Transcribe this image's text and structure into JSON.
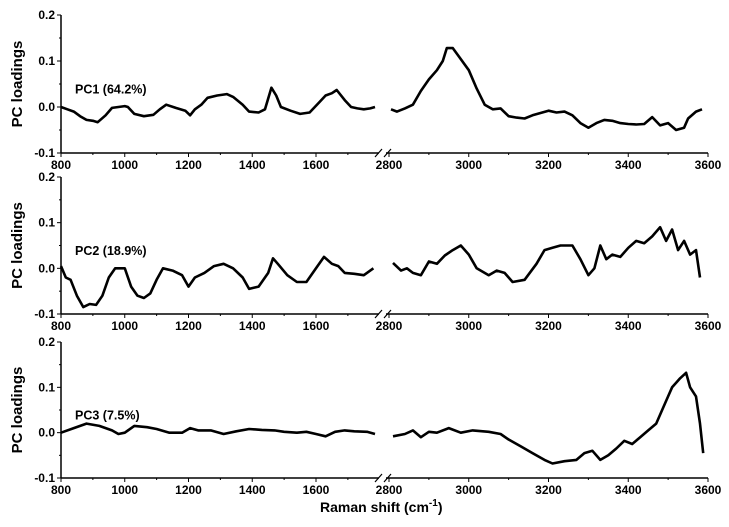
{
  "chart_data": {
    "type": "line",
    "xlabel": "Raman shift (cm",
    "xlabel_sup": "-1",
    "xlabel_close": ")",
    "ylabel": "PC loadings",
    "x_ranges": [
      [
        800,
        1790
      ],
      [
        2800,
        3600
      ]
    ],
    "x_ticks_left": [
      "800",
      "1000",
      "1200",
      "1400",
      "1600"
    ],
    "x_ticks_right": [
      "2800",
      "3000",
      "3200",
      "3400",
      "3600"
    ],
    "ylim": [
      -0.1,
      0.2
    ],
    "y_ticks": [
      "-0.1",
      "0.0",
      "0.1",
      "0.2"
    ],
    "grid": false,
    "panels": [
      {
        "label": "PC1 (64.2%)",
        "left": [
          [
            800,
            0
          ],
          [
            820,
            -0.005
          ],
          [
            840,
            -0.01
          ],
          [
            860,
            -0.02
          ],
          [
            880,
            -0.028
          ],
          [
            900,
            -0.03
          ],
          [
            915,
            -0.033
          ],
          [
            940,
            -0.018
          ],
          [
            960,
            -0.002
          ],
          [
            980,
            0
          ],
          [
            1000,
            0.002
          ],
          [
            1010,
            0
          ],
          [
            1030,
            -0.015
          ],
          [
            1060,
            -0.02
          ],
          [
            1090,
            -0.017
          ],
          [
            1110,
            -0.005
          ],
          [
            1130,
            0.005
          ],
          [
            1160,
            -0.002
          ],
          [
            1190,
            -0.008
          ],
          [
            1205,
            -0.018
          ],
          [
            1220,
            -0.005
          ],
          [
            1240,
            0.005
          ],
          [
            1260,
            0.02
          ],
          [
            1290,
            0.025
          ],
          [
            1320,
            0.028
          ],
          [
            1340,
            0.022
          ],
          [
            1370,
            0.005
          ],
          [
            1390,
            -0.01
          ],
          [
            1420,
            -0.012
          ],
          [
            1440,
            -0.005
          ],
          [
            1460,
            0.042
          ],
          [
            1475,
            0.025
          ],
          [
            1490,
            0
          ],
          [
            1520,
            -0.008
          ],
          [
            1550,
            -0.015
          ],
          [
            1580,
            -0.012
          ],
          [
            1610,
            0.01
          ],
          [
            1630,
            0.025
          ],
          [
            1650,
            0.03
          ],
          [
            1665,
            0.037
          ],
          [
            1690,
            0.015
          ],
          [
            1710,
            0
          ],
          [
            1730,
            -0.003
          ],
          [
            1750,
            -0.005
          ],
          [
            1770,
            -0.003
          ],
          [
            1785,
            0
          ]
        ],
        "right": [
          [
            2805,
            -0.005
          ],
          [
            2820,
            -0.01
          ],
          [
            2840,
            -0.003
          ],
          [
            2860,
            0.005
          ],
          [
            2880,
            0.035
          ],
          [
            2900,
            0.06
          ],
          [
            2920,
            0.08
          ],
          [
            2935,
            0.1
          ],
          [
            2945,
            0.128
          ],
          [
            2960,
            0.128
          ],
          [
            2975,
            0.11
          ],
          [
            3000,
            0.08
          ],
          [
            3020,
            0.04
          ],
          [
            3040,
            0.005
          ],
          [
            3060,
            -0.005
          ],
          [
            3080,
            -0.003
          ],
          [
            3100,
            -0.02
          ],
          [
            3120,
            -0.023
          ],
          [
            3140,
            -0.025
          ],
          [
            3160,
            -0.018
          ],
          [
            3180,
            -0.013
          ],
          [
            3200,
            -0.008
          ],
          [
            3220,
            -0.012
          ],
          [
            3240,
            -0.01
          ],
          [
            3260,
            -0.018
          ],
          [
            3280,
            -0.035
          ],
          [
            3300,
            -0.045
          ],
          [
            3320,
            -0.035
          ],
          [
            3340,
            -0.028
          ],
          [
            3360,
            -0.03
          ],
          [
            3380,
            -0.035
          ],
          [
            3400,
            -0.037
          ],
          [
            3420,
            -0.038
          ],
          [
            3440,
            -0.037
          ],
          [
            3460,
            -0.022
          ],
          [
            3480,
            -0.04
          ],
          [
            3500,
            -0.035
          ],
          [
            3520,
            -0.05
          ],
          [
            3540,
            -0.045
          ],
          [
            3550,
            -0.025
          ],
          [
            3570,
            -0.01
          ],
          [
            3585,
            -0.005
          ]
        ]
      },
      {
        "label": "PC2 (18.9%)",
        "left": [
          [
            800,
            0.005
          ],
          [
            815,
            -0.02
          ],
          [
            830,
            -0.025
          ],
          [
            850,
            -0.06
          ],
          [
            870,
            -0.085
          ],
          [
            890,
            -0.078
          ],
          [
            910,
            -0.08
          ],
          [
            930,
            -0.06
          ],
          [
            950,
            -0.02
          ],
          [
            970,
            0
          ],
          [
            1000,
            0
          ],
          [
            1020,
            -0.04
          ],
          [
            1040,
            -0.06
          ],
          [
            1060,
            -0.065
          ],
          [
            1080,
            -0.055
          ],
          [
            1100,
            -0.025
          ],
          [
            1120,
            0
          ],
          [
            1150,
            -0.005
          ],
          [
            1180,
            -0.015
          ],
          [
            1200,
            -0.04
          ],
          [
            1220,
            -0.02
          ],
          [
            1250,
            -0.01
          ],
          [
            1280,
            0.005
          ],
          [
            1310,
            0.01
          ],
          [
            1340,
            0
          ],
          [
            1370,
            -0.02
          ],
          [
            1390,
            -0.045
          ],
          [
            1420,
            -0.04
          ],
          [
            1450,
            -0.01
          ],
          [
            1465,
            0.022
          ],
          [
            1480,
            0.01
          ],
          [
            1510,
            -0.015
          ],
          [
            1540,
            -0.03
          ],
          [
            1570,
            -0.03
          ],
          [
            1600,
            0
          ],
          [
            1625,
            0.025
          ],
          [
            1650,
            0.01
          ],
          [
            1670,
            0.005
          ],
          [
            1690,
            -0.01
          ],
          [
            1720,
            -0.012
          ],
          [
            1750,
            -0.015
          ],
          [
            1780,
            0
          ]
        ],
        "right": [
          [
            2810,
            0.012
          ],
          [
            2830,
            -0.005
          ],
          [
            2845,
            0
          ],
          [
            2860,
            -0.01
          ],
          [
            2880,
            -0.015
          ],
          [
            2900,
            0.015
          ],
          [
            2920,
            0.01
          ],
          [
            2940,
            0.028
          ],
          [
            2960,
            0.04
          ],
          [
            2980,
            0.05
          ],
          [
            3000,
            0.03
          ],
          [
            3020,
            0
          ],
          [
            3050,
            -0.015
          ],
          [
            3070,
            -0.005
          ],
          [
            3090,
            -0.01
          ],
          [
            3110,
            -0.03
          ],
          [
            3140,
            -0.025
          ],
          [
            3170,
            0.01
          ],
          [
            3190,
            0.04
          ],
          [
            3210,
            0.045
          ],
          [
            3230,
            0.05
          ],
          [
            3260,
            0.05
          ],
          [
            3280,
            0.02
          ],
          [
            3300,
            -0.015
          ],
          [
            3315,
            0
          ],
          [
            3330,
            0.05
          ],
          [
            3345,
            0.02
          ],
          [
            3360,
            0.03
          ],
          [
            3380,
            0.025
          ],
          [
            3400,
            0.045
          ],
          [
            3420,
            0.06
          ],
          [
            3440,
            0.055
          ],
          [
            3460,
            0.07
          ],
          [
            3480,
            0.09
          ],
          [
            3495,
            0.06
          ],
          [
            3510,
            0.085
          ],
          [
            3525,
            0.04
          ],
          [
            3540,
            0.06
          ],
          [
            3555,
            0.03
          ],
          [
            3570,
            0.04
          ],
          [
            3580,
            -0.02
          ]
        ]
      },
      {
        "label": "PC3 (7.5%)",
        "left": [
          [
            800,
            0
          ],
          [
            840,
            0.01
          ],
          [
            880,
            0.02
          ],
          [
            920,
            0.015
          ],
          [
            960,
            0.005
          ],
          [
            980,
            -0.003
          ],
          [
            1000,
            0
          ],
          [
            1030,
            0.015
          ],
          [
            1070,
            0.012
          ],
          [
            1100,
            0.008
          ],
          [
            1140,
            0
          ],
          [
            1180,
            0
          ],
          [
            1205,
            0.01
          ],
          [
            1230,
            0.005
          ],
          [
            1270,
            0.005
          ],
          [
            1310,
            -0.003
          ],
          [
            1350,
            0.003
          ],
          [
            1390,
            0.008
          ],
          [
            1430,
            0.006
          ],
          [
            1470,
            0.005
          ],
          [
            1500,
            0.002
          ],
          [
            1540,
            0
          ],
          [
            1570,
            0.002
          ],
          [
            1600,
            -0.003
          ],
          [
            1630,
            -0.008
          ],
          [
            1660,
            0.002
          ],
          [
            1690,
            0.005
          ],
          [
            1720,
            0.003
          ],
          [
            1760,
            0.002
          ],
          [
            1785,
            -0.003
          ]
        ],
        "right": [
          [
            2810,
            -0.008
          ],
          [
            2840,
            -0.003
          ],
          [
            2860,
            0.005
          ],
          [
            2880,
            -0.01
          ],
          [
            2900,
            0.002
          ],
          [
            2920,
            0
          ],
          [
            2950,
            0.01
          ],
          [
            2980,
            0
          ],
          [
            3010,
            0.005
          ],
          [
            3050,
            0.002
          ],
          [
            3080,
            -0.003
          ],
          [
            3100,
            -0.015
          ],
          [
            3130,
            -0.03
          ],
          [
            3160,
            -0.045
          ],
          [
            3190,
            -0.06
          ],
          [
            3210,
            -0.068
          ],
          [
            3240,
            -0.063
          ],
          [
            3270,
            -0.06
          ],
          [
            3290,
            -0.045
          ],
          [
            3310,
            -0.04
          ],
          [
            3330,
            -0.06
          ],
          [
            3350,
            -0.05
          ],
          [
            3370,
            -0.035
          ],
          [
            3390,
            -0.018
          ],
          [
            3410,
            -0.025
          ],
          [
            3430,
            -0.01
          ],
          [
            3450,
            0.005
          ],
          [
            3470,
            0.02
          ],
          [
            3490,
            0.06
          ],
          [
            3500,
            0.08
          ],
          [
            3510,
            0.1
          ],
          [
            3530,
            0.12
          ],
          [
            3545,
            0.132
          ],
          [
            3555,
            0.1
          ],
          [
            3570,
            0.08
          ],
          [
            3580,
            0.02
          ],
          [
            3588,
            -0.045
          ]
        ]
      }
    ]
  }
}
